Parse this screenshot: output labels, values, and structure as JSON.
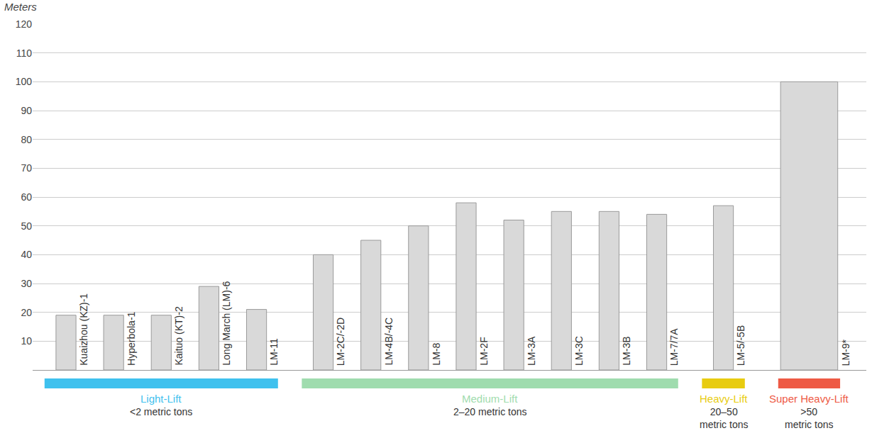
{
  "chart_data": {
    "type": "bar",
    "y_label": "Meters",
    "categories": [
      "Kuaizhou (KZ)-1",
      "Hyperbola-1",
      "Kaituo (KT)-2",
      "Long March (LM)-6",
      "LM-11",
      "LM-2C/-2D",
      "LM-4B/-4C",
      "LM-8",
      "LM-2F",
      "LM-3A",
      "LM-3C",
      "LM-3B",
      "LM-7/7A",
      "LM-5/-5B",
      "LM-9*"
    ],
    "values": [
      19,
      19,
      19,
      29,
      21,
      40,
      45,
      50,
      58,
      52,
      55,
      55,
      54,
      57,
      100
    ],
    "color": "#d9d9d9",
    "ylim": [
      0,
      120
    ],
    "yticks": [
      10,
      20,
      30,
      40,
      50,
      60,
      70,
      80,
      90,
      100,
      110,
      120
    ],
    "grid": true,
    "tick_labels": "y",
    "groups": [
      {
        "name": "Light-Lift",
        "note": "<2 metric tons",
        "color": "#3fc1ee",
        "categories": [
          "Kuaizhou (KZ)-1",
          "Hyperbola-1",
          "Kaituo (KT)-2",
          "Long March (LM)-6",
          "LM-11"
        ]
      },
      {
        "name": "Medium-Lift",
        "note": "2–20 metric tons",
        "color": "#9fdcae",
        "categories": [
          "LM-2C/-2D",
          "LM-4B/-4C",
          "LM-8",
          "LM-2F",
          "LM-3A",
          "LM-3C",
          "LM-3B",
          "LM-7/7A"
        ]
      },
      {
        "name": "Heavy-Lift",
        "note": "20–50 metric tons",
        "color": "#e8cc10",
        "categories": [
          "LM-5/-5B"
        ]
      },
      {
        "name": "Super Heavy-Lift",
        "note": ">50 metric tons",
        "color": "#ee5a45",
        "categories": [
          "LM-9*"
        ]
      }
    ]
  }
}
